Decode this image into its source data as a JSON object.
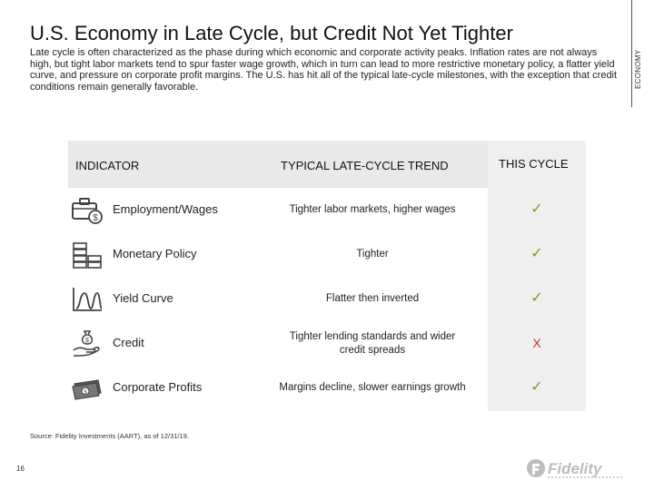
{
  "side_tab": {
    "label": "ECONOMY"
  },
  "title": "U.S. Economy in Late Cycle, but Credit Not Yet Tighter",
  "description": "Late cycle is often characterized as the phase during which economic and corporate activity peaks. Inflation rates are not always high, but tight labor markets tend to spur faster wage growth, which in turn can lead to more restrictive monetary policy, a flatter yield curve, and pressure on corporate profit margins. The U.S. has hit all of the typical late-cycle milestones, with the exception that credit conditions remain generally favorable.",
  "table": {
    "headers": {
      "indicator": "INDICATOR",
      "trend": "TYPICAL LATE-CYCLE TREND",
      "this_cycle": "THIS CYCLE"
    },
    "rows": [
      {
        "icon": "briefcase-dollar-icon",
        "indicator": "Employment/Wages",
        "trend": "Tighter labor markets, higher wages",
        "mark": "✓"
      },
      {
        "icon": "stacked-money-icon",
        "indicator": "Monetary Policy",
        "trend": "Tighter",
        "mark": "✓"
      },
      {
        "icon": "yield-curve-icon",
        "indicator": "Yield Curve",
        "trend": "Flatter then inverted",
        "mark": "✓"
      },
      {
        "icon": "hand-money-bag-icon",
        "indicator": "Credit",
        "trend": "Tighter lending standards and wider credit spreads",
        "mark": "X"
      },
      {
        "icon": "banknote-icon",
        "indicator": "Corporate Profits",
        "trend": "Margins decline, slower earnings growth",
        "mark": "✓"
      }
    ]
  },
  "footer": {
    "source": "Source: Fidelity Investments (AART), as of 12/31/19.",
    "page_number": "16",
    "logo_text": "Fidelity"
  },
  "colors": {
    "check": "#7a9a1e",
    "cross": "#c0392b",
    "header_band": "#e9e9e9",
    "this_cycle_band": "#efefef"
  }
}
